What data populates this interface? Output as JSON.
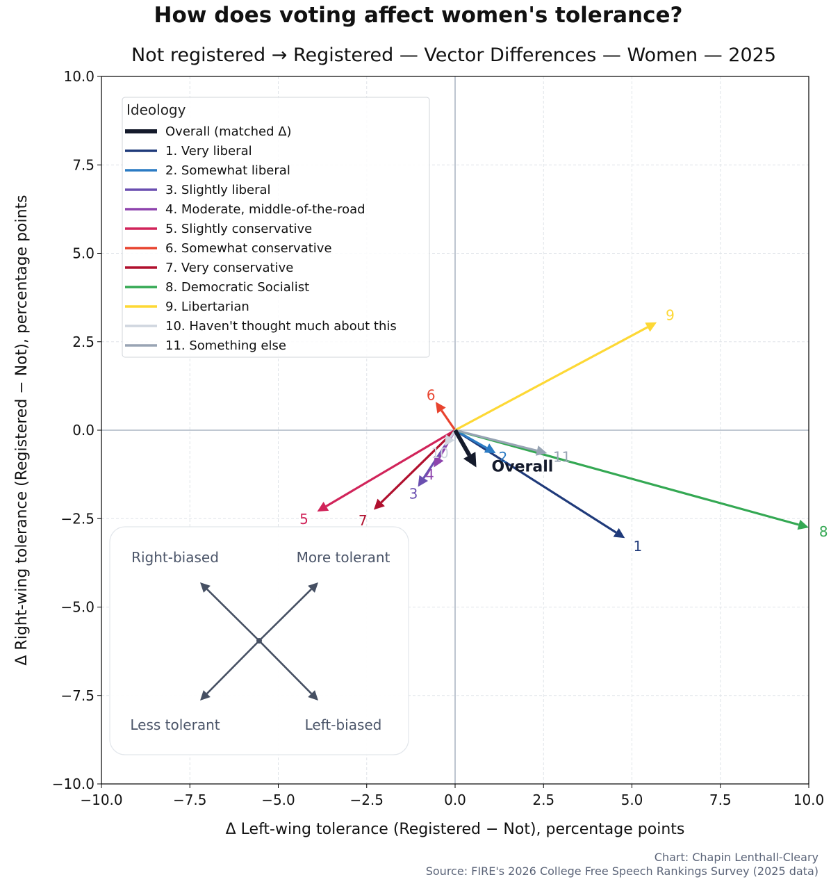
{
  "header": {
    "title": "How does voting affect women's tolerance?",
    "subtitle": "Not registered → Registered — Vector Differences — Women — 2025"
  },
  "footer": {
    "credit": "Chart: Chapin Lenthall-Cleary",
    "source": "Source: FIRE's 2026 College Free Speech Rankings Survey (2025 data)"
  },
  "chart_data": {
    "type": "vector",
    "xlabel": "Δ Left-wing tolerance (Registered − Not), percentage points",
    "ylabel": "Δ Right-wing tolerance (Registered − Not), percentage points",
    "xlim": [
      -10,
      10
    ],
    "ylim": [
      -10,
      10
    ],
    "xticks": [
      -10,
      -7.5,
      -5,
      -2.5,
      0,
      2.5,
      5,
      7.5,
      10
    ],
    "yticks": [
      -10,
      -7.5,
      -5,
      -2.5,
      0,
      2.5,
      5,
      7.5,
      10
    ],
    "xtick_labels": [
      "−10.0",
      "−7.5",
      "−5.0",
      "−2.5",
      "0.0",
      "2.5",
      "5.0",
      "7.5",
      "10.0"
    ],
    "ytick_labels": [
      "−10.0",
      "−7.5",
      "−5.0",
      "−2.5",
      "0.0",
      "2.5",
      "5.0",
      "7.5",
      "10.0"
    ],
    "grid": true,
    "legend_title": "Ideology",
    "legend_position": "top-left",
    "series": [
      {
        "name": "1. Very liberal",
        "label": "1",
        "dx": 4.8,
        "dy": -3.05,
        "color": "#1f3a7a"
      },
      {
        "name": "2. Somewhat liberal",
        "label": "2",
        "dx": 1.15,
        "dy": -0.65,
        "color": "#2b7bc4"
      },
      {
        "name": "3. Slightly liberal",
        "label": "3",
        "dx": -1.05,
        "dy": -1.6,
        "color": "#6a4fb0"
      },
      {
        "name": "4. Moderate, middle-of-the-road",
        "label": "4",
        "dx": -0.6,
        "dy": -1.05,
        "color": "#8e44ad"
      },
      {
        "name": "5. Slightly conservative",
        "label": "5",
        "dx": -3.9,
        "dy": -2.3,
        "color": "#d1245a"
      },
      {
        "name": "6. Somewhat conservative",
        "label": "6",
        "dx": -0.55,
        "dy": 0.8,
        "color": "#e8432e"
      },
      {
        "name": "7. Very conservative",
        "label": "7",
        "dx": -2.3,
        "dy": -2.25,
        "color": "#b0102e"
      },
      {
        "name": "8. Democratic Socialist",
        "label": "8",
        "dx": 10.0,
        "dy": -2.75,
        "color": "#34a853"
      },
      {
        "name": "9. Libertarian",
        "label": "9",
        "dx": 5.7,
        "dy": 3.05,
        "color": "#fdd835"
      },
      {
        "name": "10. Haven't thought much about this",
        "label": "10",
        "dx": -0.3,
        "dy": -0.45,
        "color": "#cfd6df"
      },
      {
        "name": "11. Something else",
        "label": "11",
        "dx": 2.6,
        "dy": -0.65,
        "color": "#98a4b4"
      }
    ],
    "overall": {
      "name": "Overall (matched Δ)",
      "label": "Overall",
      "dx": 0.6,
      "dy": -1.05,
      "color": "#141a2b"
    },
    "key": {
      "top_left": "Right-biased",
      "top_right": "More tolerant",
      "bottom_left": "Less tolerant",
      "bottom_right": "Left-biased"
    }
  }
}
